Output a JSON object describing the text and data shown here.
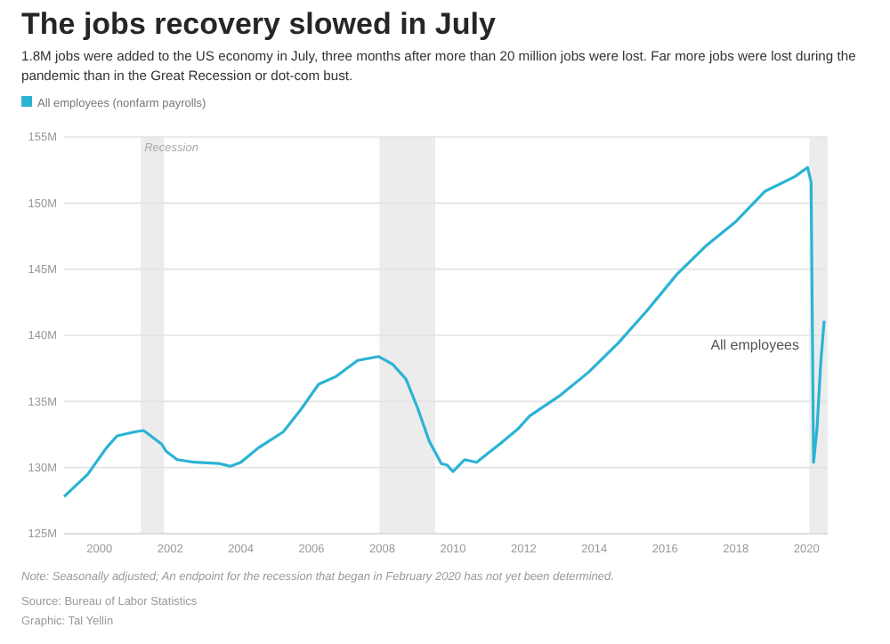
{
  "chart_data": {
    "type": "line",
    "title": "The jobs recovery slowed in July",
    "subtitle": "1.8M jobs were added to the US economy in July, three months after more than 20 million jobs were lost. Far more jobs were lost during the pandemic than in the Great Recession or dot-com bust.",
    "series": [
      {
        "name": "All employees (nonfarm payrolls)",
        "color": "#2bb3d4",
        "x": [
          1999.0,
          1999.67,
          2000.2,
          2000.5,
          2001.0,
          2001.25,
          2001.75,
          2001.9,
          2002.2,
          2002.7,
          2003.4,
          2003.7,
          2004.0,
          2004.5,
          2005.2,
          2005.7,
          2006.2,
          2006.7,
          2007.3,
          2007.9,
          2008.3,
          2008.67,
          2009.0,
          2009.33,
          2009.67,
          2009.83,
          2010.0,
          2010.33,
          2010.67,
          2011.0,
          2011.33,
          2011.83,
          2012.17,
          2013.0,
          2013.83,
          2014.67,
          2015.5,
          2016.33,
          2017.17,
          2018.0,
          2018.83,
          2019.67,
          2020.03,
          2020.13,
          2020.2,
          2020.3,
          2020.4,
          2020.5
        ],
        "values": [
          127.8,
          129.5,
          131.5,
          132.4,
          132.7,
          132.8,
          131.8,
          131.2,
          130.6,
          130.4,
          130.3,
          130.1,
          130.4,
          131.5,
          132.7,
          134.4,
          136.3,
          136.9,
          138.1,
          138.4,
          137.8,
          136.7,
          134.5,
          132.0,
          130.3,
          130.2,
          129.7,
          130.6,
          130.4,
          131.1,
          131.8,
          132.9,
          133.9,
          135.4,
          137.2,
          139.4,
          141.9,
          144.6,
          146.8,
          148.6,
          150.9,
          152.0,
          152.7,
          151.6,
          130.4,
          133.0,
          137.8,
          141.1
        ]
      }
    ],
    "xlim": [
      1999,
      2020.6
    ],
    "ylim": [
      125,
      155
    ],
    "xticks": [
      2000,
      2002,
      2004,
      2006,
      2008,
      2010,
      2012,
      2014,
      2016,
      2018,
      2020
    ],
    "yticks": [
      {
        "value": 125,
        "label": "125M"
      },
      {
        "value": 130,
        "label": "130M"
      },
      {
        "value": 135,
        "label": "135M"
      },
      {
        "value": 140,
        "label": "140M"
      },
      {
        "value": 145,
        "label": "145M"
      },
      {
        "value": 150,
        "label": "150M"
      },
      {
        "value": 155,
        "label": "155M"
      }
    ],
    "grid": "y",
    "legend": "top left",
    "marker": "none",
    "line_style": "solid",
    "bands": [
      {
        "axis": "x",
        "from": 2001.17,
        "to": 2001.83,
        "label": "Recession",
        "color": "#ececec"
      },
      {
        "axis": "x",
        "from": 2007.92,
        "to": 2009.5,
        "label": null,
        "color": "#ececec"
      },
      {
        "axis": "x",
        "from": 2020.08,
        "to": 2020.6,
        "label": null,
        "color": "#ececec"
      }
    ],
    "annotations": [
      {
        "text": "All employees",
        "x": 2020.5,
        "y": 141.1
      },
      "Note: Seasonally adjusted; An endpoint for the recession that began in February 2020 has not yet been determined.",
      "Source: Bureau of Labor Statistics",
      "Graphic: Tal Yellin"
    ]
  }
}
